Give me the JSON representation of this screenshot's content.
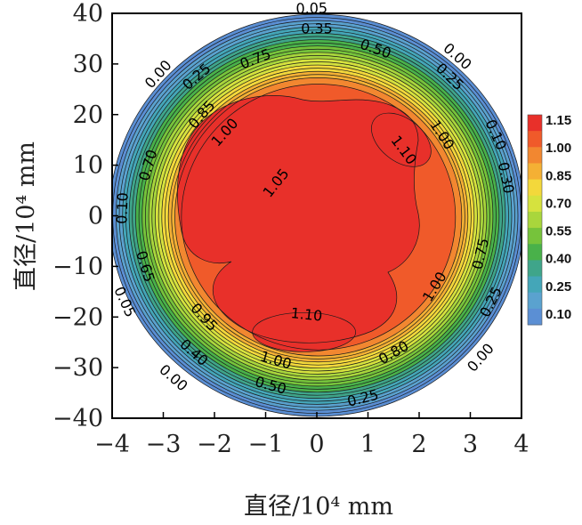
{
  "chart_data": {
    "type": "heatmap",
    "subtype": "filled-contour",
    "xlabel": "直径/10⁴ mm",
    "ylabel": "直径/10⁴ mm",
    "xlim": [
      -4,
      4
    ],
    "ylim": [
      -40,
      40
    ],
    "x_ticks": [
      "−4",
      "−3",
      "−2",
      "−1",
      "0",
      "1",
      "2",
      "3",
      "4"
    ],
    "y_ticks": [
      "40",
      "30",
      "20",
      "10",
      "0",
      "−10",
      "−20",
      "−30",
      "−40"
    ],
    "contour_levels": [
      0.05,
      0.1,
      0.15,
      0.2,
      0.25,
      0.3,
      0.35,
      0.4,
      0.45,
      0.5,
      0.55,
      0.6,
      0.65,
      0.7,
      0.75,
      0.8,
      0.85,
      0.9,
      0.95,
      1.0,
      1.05,
      1.1
    ],
    "colorbar": {
      "ticks": [
        "1.15",
        "1.00",
        "0.85",
        "0.70",
        "0.55",
        "0.40",
        "0.25",
        "0.10"
      ],
      "colors": [
        "#e8302a",
        "#f05a2a",
        "#f28730",
        "#f4b034",
        "#f3d83b",
        "#d6e23e",
        "#a9d63c",
        "#76c33b",
        "#49b14a",
        "#3fa58a",
        "#44a6b8",
        "#5aa2cf",
        "#5b8fd4"
      ]
    },
    "peaks": [
      {
        "label": "1.10",
        "x": 2.0,
        "y": 15
      },
      {
        "label": "1.10",
        "x": -0.6,
        "y": -22
      }
    ],
    "contour_labels": [
      {
        "text": "0.05",
        "x": -0.1,
        "y": 41
      },
      {
        "text": "0.35",
        "x": 0.0,
        "y": 37
      },
      {
        "text": "0.50",
        "x": 1.15,
        "y": 33
      },
      {
        "text": "0.00",
        "x": 2.75,
        "y": 31.5
      },
      {
        "text": "0.25",
        "x": 2.6,
        "y": 27.5
      },
      {
        "text": "0.00",
        "x": -3.1,
        "y": 28
      },
      {
        "text": "0.25",
        "x": -2.35,
        "y": 27.5
      },
      {
        "text": "0.75",
        "x": -1.2,
        "y": 31
      },
      {
        "text": "0.85",
        "x": -2.25,
        "y": 20
      },
      {
        "text": "1.00",
        "x": -1.8,
        "y": 16.5
      },
      {
        "text": "1.00",
        "x": 2.45,
        "y": 16
      },
      {
        "text": "1.10",
        "x": 1.7,
        "y": 13
      },
      {
        "text": "0.10",
        "x": 3.5,
        "y": 16
      },
      {
        "text": "0.30",
        "x": 3.7,
        "y": 7.5
      },
      {
        "text": "0.70",
        "x": -3.3,
        "y": 10
      },
      {
        "text": "1.05",
        "x": -0.8,
        "y": 6.5
      },
      {
        "text": "0.10",
        "x": -3.8,
        "y": 1.5
      },
      {
        "text": "0.75",
        "x": 3.2,
        "y": -7.5
      },
      {
        "text": "0.65",
        "x": -3.35,
        "y": -10
      },
      {
        "text": "1.00",
        "x": 2.3,
        "y": -14
      },
      {
        "text": "0.25",
        "x": 3.4,
        "y": -17
      },
      {
        "text": "0.05",
        "x": -3.75,
        "y": -17
      },
      {
        "text": "0.95",
        "x": -2.2,
        "y": -20
      },
      {
        "text": "1.10",
        "x": -0.2,
        "y": -19.5
      },
      {
        "text": "0.40",
        "x": -2.4,
        "y": -27
      },
      {
        "text": "1.00",
        "x": -0.8,
        "y": -28.5
      },
      {
        "text": "0.80",
        "x": 1.5,
        "y": -27
      },
      {
        "text": "0.00",
        "x": 3.2,
        "y": -28
      },
      {
        "text": "0.00",
        "x": -2.8,
        "y": -32
      },
      {
        "text": "0.50",
        "x": -0.9,
        "y": -33.5
      },
      {
        "text": "0.25",
        "x": 0.9,
        "y": -36
      }
    ]
  }
}
